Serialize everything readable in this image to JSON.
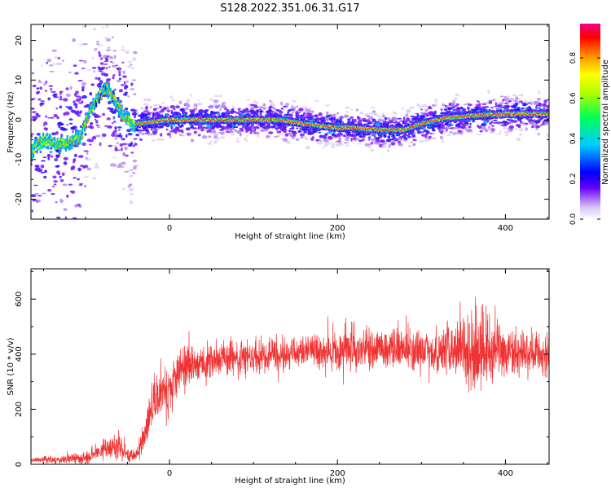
{
  "figure_title": "S128.2022.351.06.31.G17",
  "colors": {
    "snr_line": "#f03232",
    "axis": "#000000",
    "background": "#ffffff"
  },
  "chart_data": [
    {
      "type": "heatmap",
      "title": "S128.2022.351.06.31.G17",
      "xlabel": "Height of straight line (km)",
      "ylabel": "Frequency (Hz)",
      "xlim": [
        -165,
        452
      ],
      "ylim": [
        -25,
        24
      ],
      "xticks": [
        0,
        200,
        400
      ],
      "yticks": [
        -20,
        -10,
        0,
        10,
        20
      ],
      "colorbar": {
        "label": "Normalized spectral amplitude",
        "range": [
          0,
          0.97
        ],
        "ticks": [
          0.0,
          0.2,
          0.4,
          0.6,
          0.8
        ],
        "colormap": "rainbow: white, purple, blue, cyan, green, yellow, red, magenta",
        "placement": "right"
      },
      "ridge": {
        "x": [
          -165,
          -150,
          -135,
          -120,
          -105,
          -95,
          -85,
          -75,
          -65,
          -55,
          -45,
          -35,
          -20,
          0,
          50,
          100,
          130,
          160,
          180,
          200,
          220,
          250,
          280,
          300,
          330,
          360,
          400,
          452
        ],
        "frequency": [
          -8,
          -5,
          -6,
          -6,
          -4,
          2,
          6,
          8,
          5,
          1,
          -1,
          -1,
          -0.5,
          0,
          0,
          0,
          0,
          -1,
          -1.5,
          -2,
          -2,
          -2.5,
          -2.5,
          -1,
          0.5,
          1,
          1.5,
          1.5
        ]
      }
    },
    {
      "type": "line",
      "xlabel": "Height of straight line (km)",
      "ylabel": "SNR (10 * v/v)",
      "xlim": [
        -165,
        452
      ],
      "ylim": [
        0,
        710
      ],
      "xticks": [
        0,
        200,
        400
      ],
      "yticks": [
        0,
        200,
        400,
        600
      ],
      "trend": {
        "x": [
          -165,
          -130,
          -100,
          -80,
          -60,
          -50,
          -40,
          -30,
          -20,
          -10,
          0,
          10,
          20,
          30,
          60,
          100,
          150,
          200,
          250,
          300,
          330,
          350,
          380,
          400,
          430,
          452
        ],
        "y": [
          15,
          18,
          20,
          50,
          70,
          40,
          30,
          100,
          200,
          280,
          270,
          330,
          350,
          360,
          380,
          390,
          410,
          410,
          420,
          415,
          410,
          420,
          410,
          400,
          395,
          400
        ]
      },
      "noise": {
        "x": [
          -165,
          -100,
          -60,
          -40,
          -20,
          0,
          20,
          100,
          180,
          210,
          250,
          320,
          340,
          360,
          380,
          400,
          452
        ],
        "amplitude": [
          8,
          20,
          40,
          20,
          80,
          90,
          70,
          50,
          55,
          80,
          70,
          70,
          110,
          140,
          120,
          80,
          70
        ]
      }
    }
  ]
}
